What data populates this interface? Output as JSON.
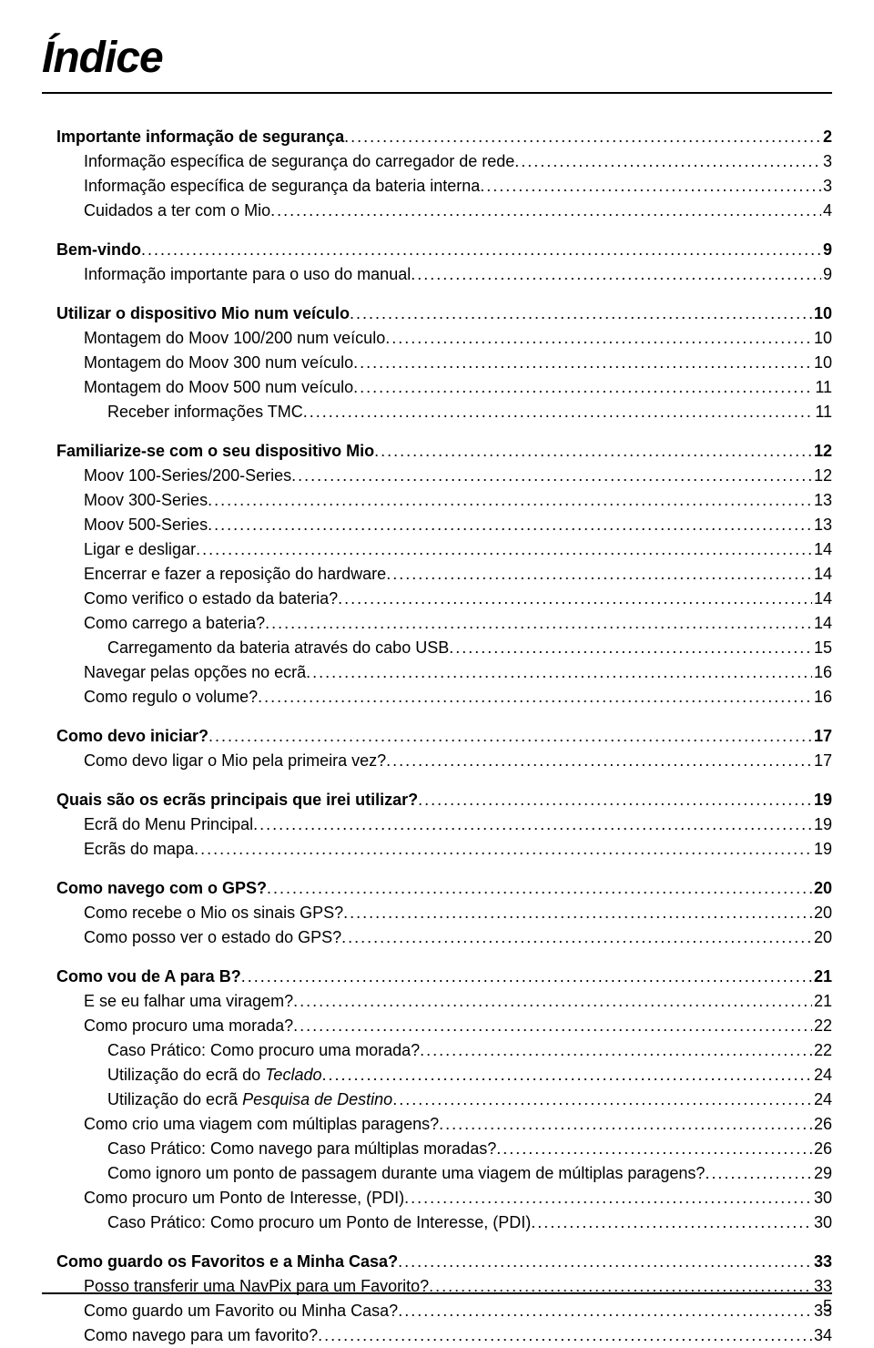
{
  "title": "Índice",
  "page_number": "5",
  "toc": [
    {
      "label": "Importante informação de segurança",
      "page": "2",
      "indent": 0,
      "bold": true,
      "gapBefore": false
    },
    {
      "label": "Informação específica de segurança do carregador de rede",
      "page": "3",
      "indent": 1,
      "bold": false
    },
    {
      "label": "Informação específica de segurança da bateria interna",
      "page": "3",
      "indent": 1,
      "bold": false
    },
    {
      "label": "Cuidados a ter com o Mio",
      "page": "4",
      "indent": 1,
      "bold": false
    },
    {
      "label": "Bem-vindo",
      "page": "9",
      "indent": 0,
      "bold": true,
      "gapBefore": true
    },
    {
      "label": "Informação importante para o uso do manual",
      "page": "9",
      "indent": 1,
      "bold": false
    },
    {
      "label": "Utilizar o dispositivo Mio num veículo",
      "page": "10",
      "indent": 0,
      "bold": true,
      "gapBefore": true
    },
    {
      "label": "Montagem do Moov 100/200 num veículo",
      "page": "10",
      "indent": 1,
      "bold": false
    },
    {
      "label": "Montagem do Moov 300 num veículo",
      "page": "10",
      "indent": 1,
      "bold": false
    },
    {
      "label": "Montagem do Moov 500 num veículo",
      "page": "11",
      "indent": 1,
      "bold": false
    },
    {
      "label": "Receber informações TMC",
      "page": "11",
      "indent": 2,
      "bold": false
    },
    {
      "label": "Familiarize-se com o seu dispositivo Mio",
      "page": "12",
      "indent": 0,
      "bold": true,
      "gapBefore": true
    },
    {
      "label": "Moov 100-Series/200-Series",
      "page": "12",
      "indent": 1,
      "bold": false
    },
    {
      "label": "Moov 300-Series",
      "page": "13",
      "indent": 1,
      "bold": false
    },
    {
      "label": "Moov 500-Series",
      "page": "13",
      "indent": 1,
      "bold": false
    },
    {
      "label": "Ligar e desligar",
      "page": "14",
      "indent": 1,
      "bold": false
    },
    {
      "label": "Encerrar e fazer a reposição do hardware",
      "page": "14",
      "indent": 1,
      "bold": false
    },
    {
      "label": "Como verifico o estado da bateria?",
      "page": "14",
      "indent": 1,
      "bold": false
    },
    {
      "label": "Como carrego a bateria?",
      "page": "14",
      "indent": 1,
      "bold": false
    },
    {
      "label": "Carregamento da bateria através do cabo USB",
      "page": "15",
      "indent": 2,
      "bold": false
    },
    {
      "label": "Navegar pelas opções no ecrã",
      "page": "16",
      "indent": 1,
      "bold": false
    },
    {
      "label": "Como regulo o volume?",
      "page": "16",
      "indent": 1,
      "bold": false
    },
    {
      "label": "Como devo iniciar?",
      "page": "17",
      "indent": 0,
      "bold": true,
      "gapBefore": true
    },
    {
      "label": "Como devo ligar o Mio pela primeira vez?",
      "page": "17",
      "indent": 1,
      "bold": false
    },
    {
      "label": "Quais são os ecrãs principais que irei utilizar?",
      "page": "19",
      "indent": 0,
      "bold": true,
      "gapBefore": true
    },
    {
      "label": "Ecrã do Menu Principal",
      "page": "19",
      "indent": 1,
      "bold": false
    },
    {
      "label": "Ecrãs do mapa",
      "page": "19",
      "indent": 1,
      "bold": false
    },
    {
      "label": "Como navego com o GPS?",
      "page": "20",
      "indent": 0,
      "bold": true,
      "gapBefore": true
    },
    {
      "label": "Como recebe o Mio os sinais GPS?",
      "page": "20",
      "indent": 1,
      "bold": false
    },
    {
      "label": "Como posso ver o estado do GPS?",
      "page": "20",
      "indent": 1,
      "bold": false
    },
    {
      "label": "Como vou de A para B?",
      "page": "21",
      "indent": 0,
      "bold": true,
      "gapBefore": true
    },
    {
      "label": "E se eu falhar uma viragem?",
      "page": "21",
      "indent": 1,
      "bold": false
    },
    {
      "label": "Como procuro uma morada?",
      "page": "22",
      "indent": 1,
      "bold": false
    },
    {
      "label": "Caso Prático: Como procuro uma morada?",
      "page": "22",
      "indent": 2,
      "bold": false
    },
    {
      "label": "Utilização do ecrã do ",
      "italicTail": "Teclado",
      "page": "24",
      "indent": 2,
      "bold": false
    },
    {
      "label": "Utilização do ecrã ",
      "italicTail": "Pesquisa de Destino",
      "page": "24",
      "indent": 2,
      "bold": false
    },
    {
      "label": "Como crio uma viagem com múltiplas paragens?",
      "page": "26",
      "indent": 1,
      "bold": false
    },
    {
      "label": "Caso Prático: Como navego para múltiplas moradas?",
      "page": "26",
      "indent": 2,
      "bold": false
    },
    {
      "label": "Como ignoro um ponto de passagem durante uma viagem de múltiplas paragens?",
      "page": "29",
      "indent": 2,
      "bold": false
    },
    {
      "label": "Como procuro um Ponto de Interesse, (PDI)",
      "page": "30",
      "indent": 1,
      "bold": false
    },
    {
      "label": "Caso Prático: Como procuro um Ponto de Interesse, (PDI)",
      "page": "30",
      "indent": 2,
      "bold": false
    },
    {
      "label": "Como guardo os Favoritos e a Minha Casa?",
      "page": "33",
      "indent": 0,
      "bold": true,
      "gapBefore": true
    },
    {
      "label": "Posso transferir uma NavPix para um Favorito?",
      "page": "33",
      "indent": 1,
      "bold": false
    },
    {
      "label": "Como guardo um Favorito ou Minha Casa?",
      "page": "33",
      "indent": 1,
      "bold": false
    },
    {
      "label": "Como navego para um favorito?",
      "page": "34",
      "indent": 1,
      "bold": false
    }
  ]
}
